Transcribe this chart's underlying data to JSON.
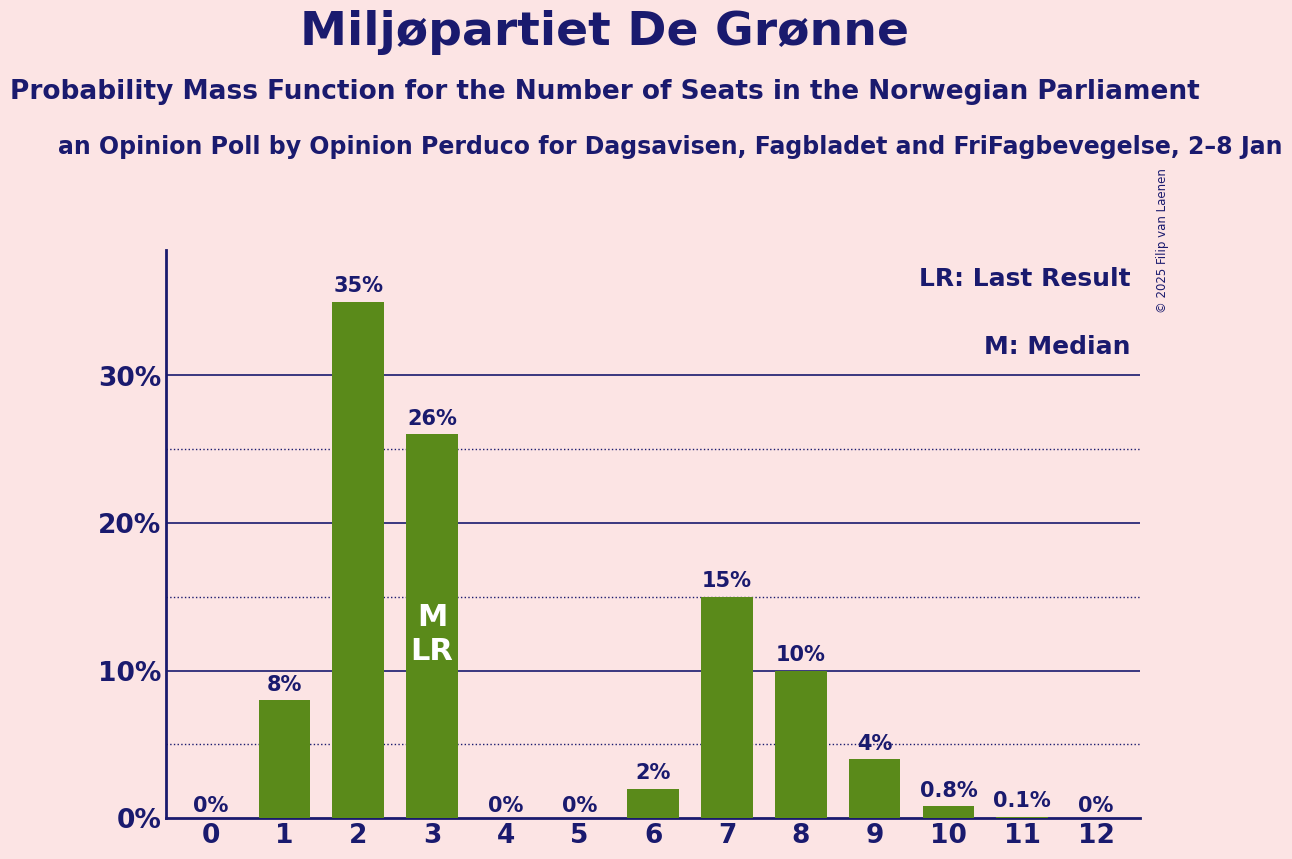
{
  "title": "Miljøpartiet De Grønne",
  "subtitle": "Probability Mass Function for the Number of Seats in the Norwegian Parliament",
  "sub_subtitle": "an Opinion Poll by Opinion Perduco for Dagsavisen, Fagbladet and FriFagbevegelse, 2–8 Jan",
  "copyright": "© 2025 Filip van Laenen",
  "categories": [
    0,
    1,
    2,
    3,
    4,
    5,
    6,
    7,
    8,
    9,
    10,
    11,
    12
  ],
  "values": [
    0.0,
    0.08,
    0.35,
    0.26,
    0.0,
    0.0,
    0.02,
    0.15,
    0.1,
    0.04,
    0.008,
    0.001,
    0.0
  ],
  "labels": [
    "0%",
    "8%",
    "35%",
    "26%",
    "0%",
    "0%",
    "2%",
    "15%",
    "10%",
    "4%",
    "0.8%",
    "0.1%",
    "0%"
  ],
  "bar_color": "#5a8a1a",
  "background_color": "#fce4e4",
  "title_color": "#1a1a6e",
  "axis_color": "#1a1a6e",
  "label_color": "#1a1a6e",
  "median_seat": 3,
  "lr_seat": 3,
  "ylim": [
    0,
    0.385
  ],
  "yticks": [
    0.0,
    0.1,
    0.2,
    0.3
  ],
  "ytick_labels": [
    "0%",
    "10%",
    "20%",
    "30%"
  ],
  "dotted_grid": [
    0.05,
    0.15,
    0.25
  ],
  "solid_grid": [
    0.1,
    0.2,
    0.3
  ],
  "legend_lr": "LR: Last Result",
  "legend_m": "M: Median",
  "title_fontsize": 34,
  "subtitle_fontsize": 19,
  "sub_subtitle_fontsize": 17,
  "label_fontsize": 15,
  "axis_tick_fontsize": 19,
  "legend_fontsize": 18,
  "mlr_fontsize": 22
}
